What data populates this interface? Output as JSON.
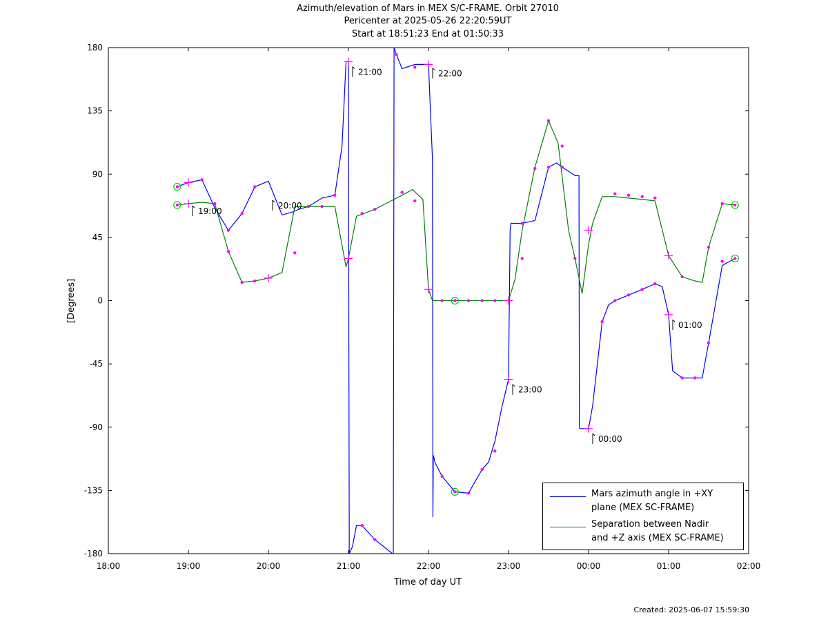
{
  "title": {
    "line1": "Azimuth/elevation of Mars in MEX S/C-FRAME.  Orbit 27010",
    "line2": "Pericenter at 2025-05-26 22:20:59UT",
    "line3": "Start at 18:51:23 End at 01:50:33"
  },
  "footer": {
    "created": "Created: 2025-06-07 15:59:30"
  },
  "chart_data": {
    "type": "line",
    "title": "Azimuth/elevation of Mars in MEX S/C-FRAME.  Orbit 27010",
    "xlabel": "Time of day UT",
    "ylabel": "[Degrees]",
    "xlim": [
      18.0,
      26.0
    ],
    "ylim": [
      -180,
      180
    ],
    "x_ticks": [
      {
        "v": 18,
        "label": "18:00"
      },
      {
        "v": 19,
        "label": "19:00"
      },
      {
        "v": 20,
        "label": "20:00"
      },
      {
        "v": 21,
        "label": "21:00"
      },
      {
        "v": 22,
        "label": "22:00"
      },
      {
        "v": 23,
        "label": "23:00"
      },
      {
        "v": 24,
        "label": "00:00"
      },
      {
        "v": 25,
        "label": "01:00"
      },
      {
        "v": 26,
        "label": "02:00"
      }
    ],
    "y_ticks": [
      {
        "v": 180,
        "label": "180"
      },
      {
        "v": 135,
        "label": "135"
      },
      {
        "v": 90,
        "label": "90"
      },
      {
        "v": 45,
        "label": "45"
      },
      {
        "v": 0,
        "label": "0"
      },
      {
        "v": -45,
        "label": "-45"
      },
      {
        "v": -90,
        "label": "-90"
      },
      {
        "v": -135,
        "label": "-135"
      },
      {
        "v": -180,
        "label": "-180"
      }
    ],
    "legend_position": "bottom-right",
    "series": [
      {
        "name": "Mars azimuth angle in +XY\nplane (MEX SC-FRAME)",
        "color": "#0000ff",
        "x": [
          18.86,
          19.0,
          19.17,
          19.33,
          19.5,
          19.67,
          19.83,
          20.0,
          20.17,
          20.3,
          20.38,
          20.5,
          20.67,
          20.83,
          20.92,
          20.97,
          21.0,
          21.005,
          21.01,
          21.05,
          21.1,
          21.17,
          21.33,
          21.55,
          21.56,
          21.57,
          21.6,
          21.67,
          21.83,
          21.93,
          22.0,
          22.05,
          22.055,
          22.06,
          22.07,
          22.08,
          22.17,
          22.33,
          22.5,
          22.67,
          22.75,
          22.83,
          22.92,
          23.0,
          23.02,
          23.03,
          23.17,
          23.33,
          23.5,
          23.6,
          23.67,
          23.83,
          23.88,
          23.885,
          23.89,
          24.0,
          24.05,
          24.17,
          24.25,
          24.33,
          24.5,
          24.67,
          24.83,
          24.92,
          25.0,
          25.05,
          25.17,
          25.33,
          25.42,
          25.5,
          25.67,
          25.83
        ],
        "y": [
          81,
          84,
          86,
          66,
          50,
          62,
          81,
          85,
          61,
          63,
          65,
          67,
          73,
          75,
          110,
          170,
          170,
          -30,
          -180,
          -175,
          -160,
          -160,
          -170,
          -180,
          -180,
          180,
          175,
          165,
          168,
          168,
          168,
          100,
          -154,
          -110,
          -112,
          -115,
          -125,
          -136,
          -137,
          -120,
          -115,
          -100,
          -75,
          -56,
          50,
          55,
          55,
          57,
          95,
          98,
          95,
          89,
          89,
          -90,
          -91,
          -91,
          -75,
          -15,
          -3,
          0,
          4,
          8,
          12,
          10,
          -10,
          -50,
          -55,
          -55,
          -55,
          -30,
          25,
          30
        ],
        "markers": [
          {
            "x": 18.86,
            "y": 81,
            "kind": "circle"
          },
          {
            "x": 19.0,
            "y": 84,
            "kind": "plus"
          },
          {
            "x": 19.17,
            "y": 86,
            "kind": "dot"
          },
          {
            "x": 19.5,
            "y": 50,
            "kind": "dot"
          },
          {
            "x": 19.67,
            "y": 62,
            "kind": "dot"
          },
          {
            "x": 19.83,
            "y": 81,
            "kind": "dot"
          },
          {
            "x": 20.5,
            "y": 67,
            "kind": "dot"
          },
          {
            "x": 20.83,
            "y": 75,
            "kind": "dot"
          },
          {
            "x": 21.0,
            "y": 170,
            "kind": "plus"
          },
          {
            "x": 21.17,
            "y": -160,
            "kind": "dot"
          },
          {
            "x": 21.33,
            "y": -170,
            "kind": "dot"
          },
          {
            "x": 21.6,
            "y": 175,
            "kind": "dot"
          },
          {
            "x": 21.83,
            "y": 166,
            "kind": "dot"
          },
          {
            "x": 22.0,
            "y": 168,
            "kind": "plus"
          },
          {
            "x": 22.17,
            "y": -125,
            "kind": "dot"
          },
          {
            "x": 22.33,
            "y": -136,
            "kind": "circle"
          },
          {
            "x": 22.5,
            "y": -137,
            "kind": "dot"
          },
          {
            "x": 22.67,
            "y": -120,
            "kind": "dot"
          },
          {
            "x": 22.83,
            "y": -107,
            "kind": "dot"
          },
          {
            "x": 23.0,
            "y": -56,
            "kind": "plus"
          },
          {
            "x": 23.17,
            "y": 55,
            "kind": "dot"
          },
          {
            "x": 23.5,
            "y": 95,
            "kind": "dot"
          },
          {
            "x": 23.67,
            "y": 95,
            "kind": "dot"
          },
          {
            "x": 24.0,
            "y": -91,
            "kind": "plus"
          },
          {
            "x": 24.17,
            "y": -15,
            "kind": "dot"
          },
          {
            "x": 24.33,
            "y": 0,
            "kind": "dot"
          },
          {
            "x": 24.5,
            "y": 4,
            "kind": "dot"
          },
          {
            "x": 24.67,
            "y": 8,
            "kind": "dot"
          },
          {
            "x": 24.83,
            "y": 12,
            "kind": "dot"
          },
          {
            "x": 25.0,
            "y": -10,
            "kind": "plus"
          },
          {
            "x": 25.17,
            "y": -55,
            "kind": "dot"
          },
          {
            "x": 25.33,
            "y": -55,
            "kind": "dot"
          },
          {
            "x": 25.5,
            "y": -30,
            "kind": "dot"
          },
          {
            "x": 25.67,
            "y": 28,
            "kind": "dot"
          },
          {
            "x": 25.83,
            "y": 30,
            "kind": "circle"
          }
        ]
      },
      {
        "name": "Separation between Nadir\nand +Z axis (MEX SC-FRAME)",
        "color": "#008000",
        "x": [
          18.86,
          19.0,
          19.17,
          19.33,
          19.5,
          19.67,
          19.83,
          20.0,
          20.17,
          20.33,
          20.4,
          20.67,
          20.83,
          20.97,
          21.0,
          21.1,
          21.33,
          21.5,
          21.67,
          21.8,
          21.93,
          22.0,
          22.05,
          22.17,
          22.33,
          22.5,
          22.67,
          22.83,
          23.0,
          23.08,
          23.17,
          23.33,
          23.5,
          23.62,
          23.75,
          23.83,
          23.92,
          24.0,
          24.05,
          24.17,
          24.33,
          24.5,
          24.67,
          24.83,
          25.0,
          25.17,
          25.33,
          25.42,
          25.5,
          25.67,
          25.83
        ],
        "y": [
          68,
          69,
          70,
          69,
          35,
          13,
          14,
          16,
          20,
          67,
          67,
          67,
          67,
          24,
          30,
          60,
          65,
          70,
          75,
          79,
          72,
          8,
          0,
          0,
          0,
          0,
          0,
          0,
          0,
          15,
          50,
          95,
          128,
          112,
          50,
          30,
          5,
          40,
          55,
          74,
          74,
          73,
          72,
          71,
          32,
          17,
          14,
          13,
          38,
          69,
          68
        ],
        "markers": [
          {
            "x": 18.86,
            "y": 68,
            "kind": "circle"
          },
          {
            "x": 19.0,
            "y": 69,
            "kind": "plus"
          },
          {
            "x": 19.33,
            "y": 69,
            "kind": "dot"
          },
          {
            "x": 19.5,
            "y": 35,
            "kind": "dot"
          },
          {
            "x": 19.67,
            "y": 13,
            "kind": "dot"
          },
          {
            "x": 19.83,
            "y": 14,
            "kind": "dot"
          },
          {
            "x": 20.0,
            "y": 16,
            "kind": "plus"
          },
          {
            "x": 20.33,
            "y": 34,
            "kind": "dot"
          },
          {
            "x": 20.67,
            "y": 67,
            "kind": "dot"
          },
          {
            "x": 21.0,
            "y": 30,
            "kind": "plus"
          },
          {
            "x": 21.17,
            "y": 62,
            "kind": "dot"
          },
          {
            "x": 21.33,
            "y": 65,
            "kind": "dot"
          },
          {
            "x": 21.67,
            "y": 77,
            "kind": "dot"
          },
          {
            "x": 21.83,
            "y": 71,
            "kind": "dot"
          },
          {
            "x": 22.0,
            "y": 8,
            "kind": "plus"
          },
          {
            "x": 22.17,
            "y": 0,
            "kind": "dot"
          },
          {
            "x": 22.33,
            "y": 0,
            "kind": "circle"
          },
          {
            "x": 22.5,
            "y": 0,
            "kind": "dot"
          },
          {
            "x": 22.67,
            "y": 0,
            "kind": "dot"
          },
          {
            "x": 22.83,
            "y": 0,
            "kind": "dot"
          },
          {
            "x": 23.0,
            "y": 0,
            "kind": "plus"
          },
          {
            "x": 23.17,
            "y": 30,
            "kind": "dot"
          },
          {
            "x": 23.33,
            "y": 94,
            "kind": "dot"
          },
          {
            "x": 23.5,
            "y": 128,
            "kind": "dot"
          },
          {
            "x": 23.67,
            "y": 110,
            "kind": "dot"
          },
          {
            "x": 23.83,
            "y": 30,
            "kind": "dot"
          },
          {
            "x": 24.0,
            "y": 50,
            "kind": "plus"
          },
          {
            "x": 24.33,
            "y": 76,
            "kind": "dot"
          },
          {
            "x": 24.5,
            "y": 75,
            "kind": "dot"
          },
          {
            "x": 24.67,
            "y": 74,
            "kind": "dot"
          },
          {
            "x": 24.83,
            "y": 73,
            "kind": "dot"
          },
          {
            "x": 25.0,
            "y": 32,
            "kind": "plus"
          },
          {
            "x": 25.17,
            "y": 17,
            "kind": "dot"
          },
          {
            "x": 25.5,
            "y": 38,
            "kind": "dot"
          },
          {
            "x": 25.67,
            "y": 69,
            "kind": "dot"
          },
          {
            "x": 25.83,
            "y": 68,
            "kind": "circle"
          }
        ]
      }
    ],
    "annotations": [
      {
        "label": "19:00",
        "x": 19.0,
        "y": 66
      },
      {
        "label": "20:00",
        "x": 20.0,
        "y": 70
      },
      {
        "label": "21:00",
        "x": 21.0,
        "y": 165
      },
      {
        "label": "22:00",
        "x": 22.0,
        "y": 164
      },
      {
        "label": "23:00",
        "x": 23.0,
        "y": -61
      },
      {
        "label": "00:00",
        "x": 24.0,
        "y": -96
      },
      {
        "label": "01:00",
        "x": 25.0,
        "y": -15
      }
    ],
    "marker_color": "#ff00ff",
    "highlight_color": "#00cc00"
  }
}
